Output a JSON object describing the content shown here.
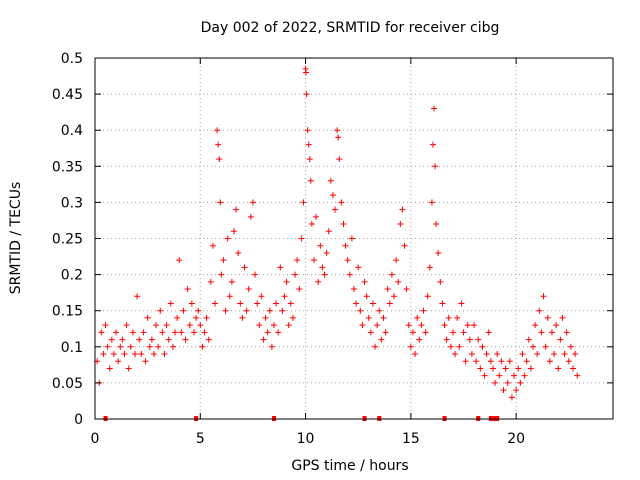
{
  "chart_data": {
    "type": "scatter",
    "title": "Day 002 of 2022, SRMTID for receiver cibg",
    "xlabel": "GPS time / hours",
    "ylabel": "SRMTID / TECUs",
    "xlim": [
      0,
      24.6
    ],
    "ylim": [
      0,
      0.5
    ],
    "x_ticks": [
      0,
      5,
      10,
      15,
      20
    ],
    "x_tick_labels": [
      "0",
      "5",
      "10",
      "15",
      "20"
    ],
    "y_ticks": [
      0,
      0.05,
      0.1,
      0.15,
      0.2,
      0.25,
      0.3,
      0.35,
      0.4,
      0.45,
      0.5
    ],
    "y_tick_labels": [
      "0",
      "0.05",
      "0.1",
      "0.15",
      "0.2",
      "0.25",
      "0.3",
      "0.35",
      "0.4",
      "0.45",
      "0.5"
    ],
    "grid": true,
    "marker": "+",
    "color": "#ff0000",
    "axis_markers_x": [
      0.5,
      4.8,
      8.5,
      12.8,
      13.5,
      16.6,
      18.2,
      18.8,
      19.0,
      19.1
    ],
    "series": [
      {
        "name": "SRMTID",
        "points": [
          [
            0.1,
            0.08
          ],
          [
            0.2,
            0.05
          ],
          [
            0.3,
            0.12
          ],
          [
            0.4,
            0.09
          ],
          [
            0.5,
            0.13
          ],
          [
            0.6,
            0.1
          ],
          [
            0.7,
            0.07
          ],
          [
            0.8,
            0.11
          ],
          [
            0.9,
            0.09
          ],
          [
            1.0,
            0.12
          ],
          [
            1.1,
            0.08
          ],
          [
            1.2,
            0.1
          ],
          [
            1.3,
            0.11
          ],
          [
            1.4,
            0.09
          ],
          [
            1.5,
            0.13
          ],
          [
            1.6,
            0.07
          ],
          [
            1.7,
            0.1
          ],
          [
            1.8,
            0.12
          ],
          [
            1.9,
            0.09
          ],
          [
            2.0,
            0.17
          ],
          [
            2.1,
            0.11
          ],
          [
            2.2,
            0.09
          ],
          [
            2.3,
            0.12
          ],
          [
            2.4,
            0.08
          ],
          [
            2.5,
            0.14
          ],
          [
            2.6,
            0.1
          ],
          [
            2.7,
            0.11
          ],
          [
            2.8,
            0.09
          ],
          [
            2.9,
            0.13
          ],
          [
            3.0,
            0.1
          ],
          [
            3.1,
            0.15
          ],
          [
            3.2,
            0.12
          ],
          [
            3.3,
            0.09
          ],
          [
            3.4,
            0.13
          ],
          [
            3.5,
            0.11
          ],
          [
            3.6,
            0.16
          ],
          [
            3.7,
            0.1
          ],
          [
            3.8,
            0.12
          ],
          [
            3.9,
            0.14
          ],
          [
            4.0,
            0.22
          ],
          [
            4.1,
            0.12
          ],
          [
            4.2,
            0.15
          ],
          [
            4.3,
            0.11
          ],
          [
            4.4,
            0.18
          ],
          [
            4.5,
            0.13
          ],
          [
            4.6,
            0.16
          ],
          [
            4.7,
            0.12
          ],
          [
            4.8,
            0.14
          ],
          [
            4.9,
            0.15
          ],
          [
            5.0,
            0.13
          ],
          [
            5.1,
            0.1
          ],
          [
            5.2,
            0.12
          ],
          [
            5.3,
            0.14
          ],
          [
            5.4,
            0.11
          ],
          [
            5.5,
            0.19
          ],
          [
            5.6,
            0.24
          ],
          [
            5.7,
            0.16
          ],
          [
            5.8,
            0.4
          ],
          [
            5.85,
            0.38
          ],
          [
            5.9,
            0.36
          ],
          [
            5.95,
            0.3
          ],
          [
            6.0,
            0.2
          ],
          [
            6.1,
            0.22
          ],
          [
            6.2,
            0.15
          ],
          [
            6.3,
            0.25
          ],
          [
            6.4,
            0.17
          ],
          [
            6.5,
            0.19
          ],
          [
            6.6,
            0.26
          ],
          [
            6.7,
            0.29
          ],
          [
            6.8,
            0.23
          ],
          [
            6.9,
            0.16
          ],
          [
            7.0,
            0.14
          ],
          [
            7.1,
            0.21
          ],
          [
            7.2,
            0.15
          ],
          [
            7.3,
            0.18
          ],
          [
            7.4,
            0.28
          ],
          [
            7.5,
            0.3
          ],
          [
            7.6,
            0.2
          ],
          [
            7.7,
            0.16
          ],
          [
            7.8,
            0.13
          ],
          [
            7.9,
            0.17
          ],
          [
            8.0,
            0.11
          ],
          [
            8.1,
            0.14
          ],
          [
            8.2,
            0.12
          ],
          [
            8.3,
            0.15
          ],
          [
            8.4,
            0.1
          ],
          [
            8.5,
            0.13
          ],
          [
            8.6,
            0.16
          ],
          [
            8.7,
            0.12
          ],
          [
            8.8,
            0.21
          ],
          [
            8.9,
            0.15
          ],
          [
            9.0,
            0.17
          ],
          [
            9.1,
            0.19
          ],
          [
            9.2,
            0.13
          ],
          [
            9.3,
            0.16
          ],
          [
            9.4,
            0.14
          ],
          [
            9.5,
            0.2
          ],
          [
            9.6,
            0.22
          ],
          [
            9.7,
            0.18
          ],
          [
            9.8,
            0.25
          ],
          [
            9.9,
            0.3
          ],
          [
            10.0,
            0.485
          ],
          [
            10.02,
            0.48
          ],
          [
            10.05,
            0.45
          ],
          [
            10.1,
            0.4
          ],
          [
            10.15,
            0.38
          ],
          [
            10.2,
            0.36
          ],
          [
            10.25,
            0.33
          ],
          [
            10.3,
            0.27
          ],
          [
            10.4,
            0.22
          ],
          [
            10.5,
            0.28
          ],
          [
            10.6,
            0.19
          ],
          [
            10.7,
            0.24
          ],
          [
            10.8,
            0.21
          ],
          [
            10.9,
            0.2
          ],
          [
            11.0,
            0.23
          ],
          [
            11.1,
            0.26
          ],
          [
            11.2,
            0.33
          ],
          [
            11.3,
            0.31
          ],
          [
            11.4,
            0.29
          ],
          [
            11.5,
            0.4
          ],
          [
            11.55,
            0.39
          ],
          [
            11.6,
            0.36
          ],
          [
            11.7,
            0.3
          ],
          [
            11.8,
            0.27
          ],
          [
            11.9,
            0.24
          ],
          [
            12.0,
            0.22
          ],
          [
            12.1,
            0.2
          ],
          [
            12.2,
            0.25
          ],
          [
            12.3,
            0.18
          ],
          [
            12.4,
            0.16
          ],
          [
            12.5,
            0.21
          ],
          [
            12.6,
            0.15
          ],
          [
            12.7,
            0.13
          ],
          [
            12.8,
            0.19
          ],
          [
            12.9,
            0.17
          ],
          [
            13.0,
            0.14
          ],
          [
            13.1,
            0.12
          ],
          [
            13.2,
            0.16
          ],
          [
            13.3,
            0.1
          ],
          [
            13.4,
            0.13
          ],
          [
            13.5,
            0.15
          ],
          [
            13.6,
            0.11
          ],
          [
            13.7,
            0.14
          ],
          [
            13.8,
            0.12
          ],
          [
            13.9,
            0.18
          ],
          [
            14.0,
            0.16
          ],
          [
            14.1,
            0.2
          ],
          [
            14.2,
            0.17
          ],
          [
            14.3,
            0.22
          ],
          [
            14.4,
            0.19
          ],
          [
            14.5,
            0.27
          ],
          [
            14.6,
            0.29
          ],
          [
            14.7,
            0.24
          ],
          [
            14.8,
            0.18
          ],
          [
            14.9,
            0.13
          ],
          [
            15.0,
            0.1
          ],
          [
            15.1,
            0.12
          ],
          [
            15.2,
            0.09
          ],
          [
            15.3,
            0.14
          ],
          [
            15.4,
            0.11
          ],
          [
            15.5,
            0.13
          ],
          [
            15.6,
            0.15
          ],
          [
            15.7,
            0.12
          ],
          [
            15.8,
            0.17
          ],
          [
            15.9,
            0.21
          ],
          [
            16.0,
            0.3
          ],
          [
            16.05,
            0.38
          ],
          [
            16.1,
            0.43
          ],
          [
            16.15,
            0.35
          ],
          [
            16.2,
            0.27
          ],
          [
            16.3,
            0.23
          ],
          [
            16.4,
            0.19
          ],
          [
            16.5,
            0.16
          ],
          [
            16.6,
            0.13
          ],
          [
            16.7,
            0.11
          ],
          [
            16.8,
            0.14
          ],
          [
            16.9,
            0.1
          ],
          [
            17.0,
            0.12
          ],
          [
            17.1,
            0.09
          ],
          [
            17.2,
            0.14
          ],
          [
            17.3,
            0.1
          ],
          [
            17.4,
            0.16
          ],
          [
            17.5,
            0.12
          ],
          [
            17.6,
            0.08
          ],
          [
            17.7,
            0.13
          ],
          [
            17.8,
            0.11
          ],
          [
            17.9,
            0.09
          ],
          [
            18.0,
            0.13
          ],
          [
            18.1,
            0.08
          ],
          [
            18.2,
            0.11
          ],
          [
            18.3,
            0.07
          ],
          [
            18.4,
            0.1
          ],
          [
            18.5,
            0.06
          ],
          [
            18.6,
            0.09
          ],
          [
            18.7,
            0.12
          ],
          [
            18.8,
            0.08
          ],
          [
            18.9,
            0.07
          ],
          [
            19.0,
            0.05
          ],
          [
            19.1,
            0.09
          ],
          [
            19.2,
            0.06
          ],
          [
            19.3,
            0.08
          ],
          [
            19.4,
            0.04
          ],
          [
            19.5,
            0.07
          ],
          [
            19.6,
            0.05
          ],
          [
            19.7,
            0.08
          ],
          [
            19.8,
            0.03
          ],
          [
            19.9,
            0.06
          ],
          [
            20.0,
            0.04
          ],
          [
            20.1,
            0.07
          ],
          [
            20.2,
            0.05
          ],
          [
            20.3,
            0.09
          ],
          [
            20.4,
            0.06
          ],
          [
            20.5,
            0.08
          ],
          [
            20.6,
            0.11
          ],
          [
            20.7,
            0.07
          ],
          [
            20.8,
            0.1
          ],
          [
            20.9,
            0.13
          ],
          [
            21.0,
            0.09
          ],
          [
            21.1,
            0.15
          ],
          [
            21.2,
            0.12
          ],
          [
            21.3,
            0.17
          ],
          [
            21.4,
            0.1
          ],
          [
            21.5,
            0.14
          ],
          [
            21.6,
            0.08
          ],
          [
            21.7,
            0.12
          ],
          [
            21.8,
            0.09
          ],
          [
            21.9,
            0.13
          ],
          [
            22.0,
            0.07
          ],
          [
            22.1,
            0.11
          ],
          [
            22.2,
            0.14
          ],
          [
            22.3,
            0.09
          ],
          [
            22.4,
            0.12
          ],
          [
            22.5,
            0.08
          ],
          [
            22.6,
            0.1
          ],
          [
            22.7,
            0.07
          ],
          [
            22.8,
            0.09
          ],
          [
            22.9,
            0.06
          ]
        ]
      }
    ]
  }
}
